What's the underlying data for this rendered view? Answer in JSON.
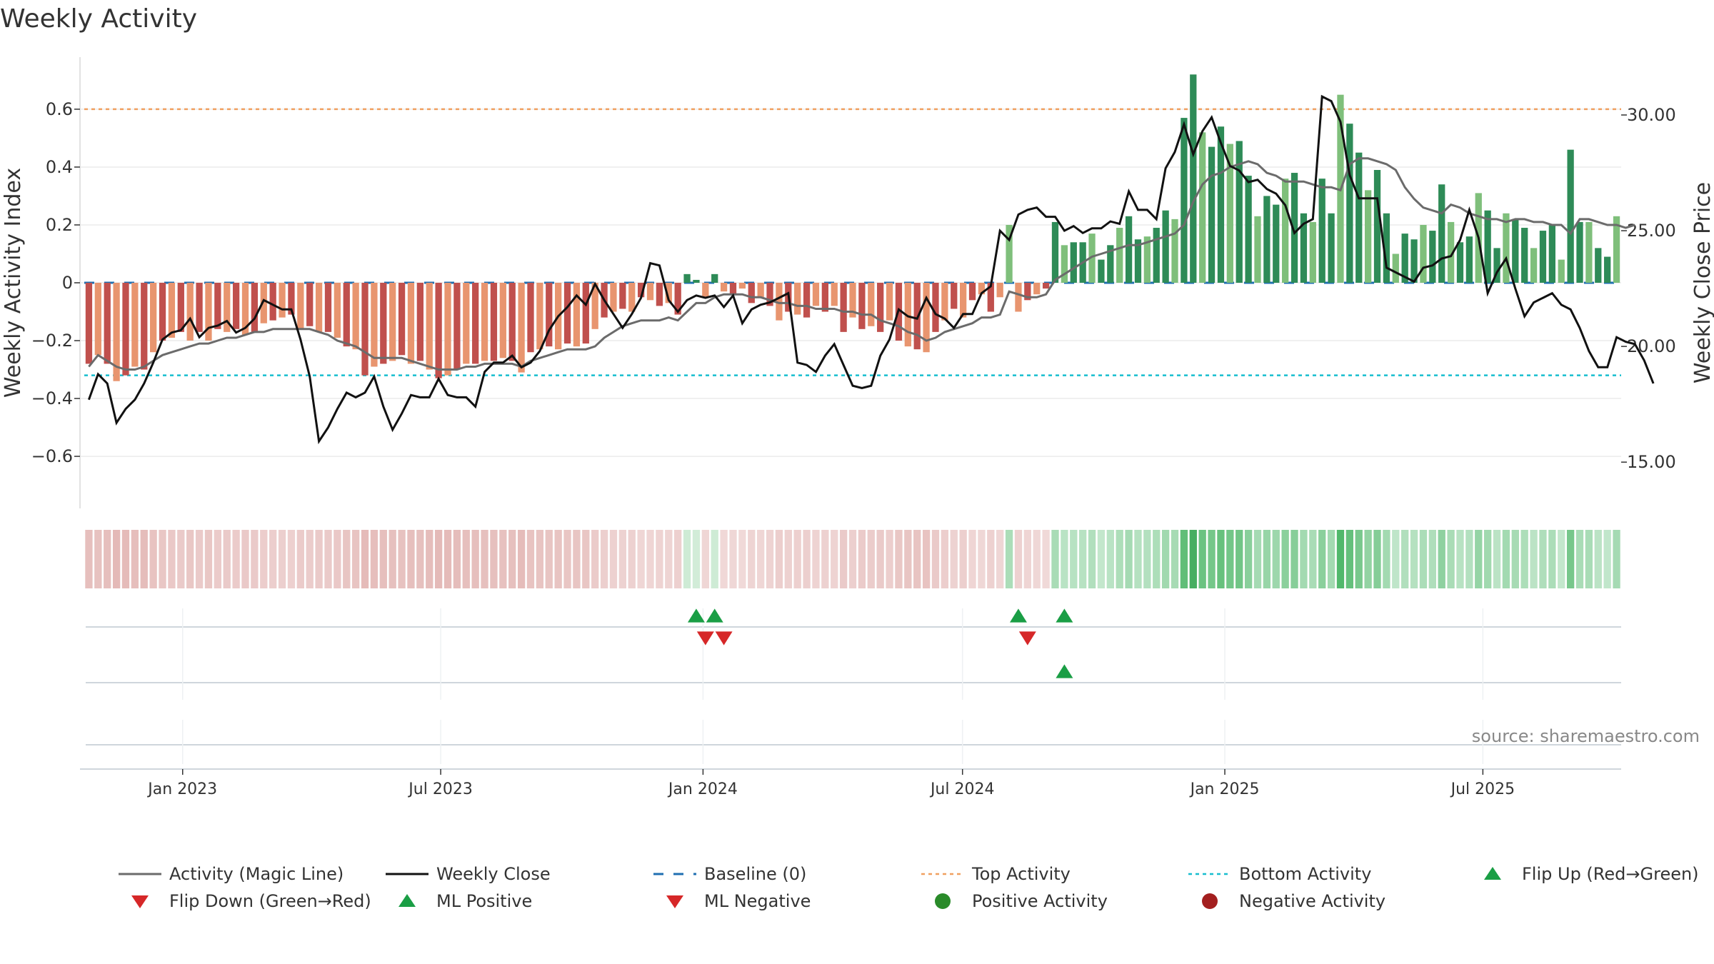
{
  "chart_data": {
    "type": "bar",
    "title": "Weekly Activity",
    "ylabel_left": "Weekly Activity Index",
    "ylabel_right": "Weekly Close Price",
    "left_axis": {
      "range": [
        -0.78,
        0.78
      ],
      "ticks": [
        -0.6,
        -0.4,
        -0.2,
        0,
        0.2,
        0.4,
        0.6
      ],
      "tick_labels": [
        "−0.6",
        "−0.4",
        "−0.2",
        "0",
        "0.2",
        "0.4",
        "0.6"
      ]
    },
    "right_axis": {
      "range": [
        13.0,
        32.5
      ],
      "ticks": [
        15,
        20,
        25,
        30
      ],
      "tick_labels": [
        "15.00",
        "20.00",
        "25.00",
        "30.00"
      ]
    },
    "x_axis": {
      "start_date": "2022-10-24",
      "end_date": "2025-10-06",
      "tick_dates": [
        "2023-01-01",
        "2023-07-01",
        "2024-01-01",
        "2024-07-01",
        "2025-01-01",
        "2025-07-01"
      ],
      "tick_labels": [
        "Jan 2023",
        "Jul 2023",
        "Jan 2024",
        "Jul 2024",
        "Jan 2025",
        "Jul 2025"
      ]
    },
    "reference_lines": {
      "top_activity": 0.6,
      "bottom_activity": -0.32,
      "baseline": 0
    },
    "activity_bars": [
      -0.28,
      -0.25,
      -0.28,
      -0.34,
      -0.32,
      -0.29,
      -0.3,
      -0.24,
      -0.2,
      -0.19,
      -0.17,
      -0.2,
      -0.17,
      -0.2,
      -0.16,
      -0.17,
      -0.16,
      -0.18,
      -0.17,
      -0.14,
      -0.13,
      -0.12,
      -0.11,
      -0.16,
      -0.15,
      -0.17,
      -0.17,
      -0.19,
      -0.22,
      -0.23,
      -0.32,
      -0.29,
      -0.28,
      -0.27,
      -0.25,
      -0.28,
      -0.27,
      -0.3,
      -0.33,
      -0.32,
      -0.3,
      -0.28,
      -0.28,
      -0.27,
      -0.27,
      -0.26,
      -0.27,
      -0.31,
      -0.24,
      -0.23,
      -0.22,
      -0.23,
      -0.21,
      -0.22,
      -0.21,
      -0.16,
      -0.12,
      -0.1,
      -0.09,
      -0.1,
      -0.05,
      -0.06,
      -0.08,
      -0.07,
      -0.11,
      0.03,
      0.01,
      -0.05,
      0.03,
      -0.03,
      -0.04,
      -0.02,
      -0.07,
      -0.05,
      -0.08,
      -0.13,
      -0.1,
      -0.11,
      -0.12,
      -0.08,
      -0.1,
      -0.08,
      -0.17,
      -0.12,
      -0.16,
      -0.15,
      -0.17,
      -0.13,
      -0.2,
      -0.22,
      -0.23,
      -0.24,
      -0.17,
      -0.13,
      -0.09,
      -0.12,
      -0.06,
      -0.04,
      -0.1,
      -0.05,
      0.2,
      -0.1,
      -0.06,
      -0.04,
      -0.02,
      0.21,
      0.13,
      0.14,
      0.14,
      0.17,
      0.08,
      0.13,
      0.19,
      0.23,
      0.15,
      0.16,
      0.19,
      0.25,
      0.22,
      0.57,
      0.72,
      0.52,
      0.47,
      0.54,
      0.48,
      0.49,
      0.37,
      0.23,
      0.3,
      0.27,
      0.36,
      0.38,
      0.24,
      0.21,
      0.36,
      0.24,
      0.65,
      0.55,
      0.45,
      0.32,
      0.39,
      0.24,
      0.1,
      0.17,
      0.15,
      0.2,
      0.18,
      0.34,
      0.21,
      0.14,
      0.16,
      0.31,
      0.25,
      0.12,
      0.24,
      0.22,
      0.19,
      0.12,
      0.18,
      0.2,
      0.08,
      0.46,
      0.21,
      0.21,
      0.12,
      0.09,
      0.23
    ],
    "magic_line": [
      -0.29,
      -0.25,
      -0.27,
      -0.29,
      -0.3,
      -0.3,
      -0.29,
      -0.27,
      -0.25,
      -0.24,
      -0.23,
      -0.22,
      -0.21,
      -0.21,
      -0.2,
      -0.19,
      -0.19,
      -0.18,
      -0.17,
      -0.17,
      -0.16,
      -0.16,
      -0.16,
      -0.16,
      -0.16,
      -0.17,
      -0.18,
      -0.2,
      -0.21,
      -0.22,
      -0.24,
      -0.26,
      -0.26,
      -0.26,
      -0.26,
      -0.27,
      -0.28,
      -0.29,
      -0.3,
      -0.3,
      -0.3,
      -0.29,
      -0.29,
      -0.28,
      -0.28,
      -0.28,
      -0.28,
      -0.29,
      -0.27,
      -0.26,
      -0.25,
      -0.24,
      -0.23,
      -0.23,
      -0.23,
      -0.22,
      -0.19,
      -0.17,
      -0.15,
      -0.14,
      -0.13,
      -0.13,
      -0.13,
      -0.12,
      -0.13,
      -0.1,
      -0.07,
      -0.07,
      -0.05,
      -0.04,
      -0.04,
      -0.04,
      -0.05,
      -0.05,
      -0.06,
      -0.07,
      -0.07,
      -0.08,
      -0.08,
      -0.09,
      -0.09,
      -0.09,
      -0.1,
      -0.1,
      -0.11,
      -0.11,
      -0.13,
      -0.14,
      -0.15,
      -0.17,
      -0.18,
      -0.2,
      -0.19,
      -0.17,
      -0.16,
      -0.15,
      -0.14,
      -0.12,
      -0.12,
      -0.11,
      -0.03,
      -0.04,
      -0.05,
      -0.05,
      -0.04,
      0.01,
      0.03,
      0.05,
      0.07,
      0.09,
      0.1,
      0.11,
      0.12,
      0.13,
      0.13,
      0.14,
      0.15,
      0.16,
      0.17,
      0.2,
      0.28,
      0.34,
      0.37,
      0.38,
      0.4,
      0.41,
      0.42,
      0.41,
      0.38,
      0.37,
      0.35,
      0.35,
      0.35,
      0.34,
      0.33,
      0.33,
      0.32,
      0.41,
      0.43,
      0.43,
      0.42,
      0.41,
      0.39,
      0.33,
      0.29,
      0.26,
      0.25,
      0.24,
      0.27,
      0.26,
      0.24,
      0.23,
      0.22,
      0.22,
      0.21,
      0.22,
      0.22,
      0.21,
      0.21,
      0.2,
      0.2,
      0.17,
      0.22,
      0.22,
      0.21,
      0.2,
      0.2,
      0.19,
      0.2
    ],
    "weekly_close": [
      17.7,
      18.8,
      18.4,
      16.7,
      17.3,
      17.7,
      18.4,
      19.3,
      20.3,
      20.6,
      20.7,
      21.2,
      20.4,
      20.8,
      20.9,
      21.1,
      20.6,
      20.8,
      21.2,
      22.0,
      21.8,
      21.6,
      21.6,
      20.3,
      18.7,
      15.9,
      16.5,
      17.3,
      18.0,
      17.8,
      18.0,
      18.7,
      17.4,
      16.4,
      17.1,
      17.9,
      17.8,
      17.8,
      18.6,
      17.9,
      17.8,
      17.8,
      17.4,
      18.9,
      19.3,
      19.3,
      19.6,
      19.1,
      19.3,
      19.8,
      20.7,
      21.3,
      21.7,
      22.2,
      21.8,
      22.7,
      22.0,
      21.4,
      20.8,
      21.4,
      22.1,
      23.6,
      23.5,
      22.0,
      21.5,
      22.0,
      22.2,
      22.1,
      22.2,
      21.7,
      22.2,
      21.0,
      21.6,
      21.8,
      21.9,
      22.1,
      22.3,
      19.3,
      19.2,
      18.9,
      19.6,
      20.1,
      19.2,
      18.3,
      18.2,
      18.3,
      19.6,
      20.3,
      21.6,
      21.3,
      21.2,
      22.1,
      21.4,
      21.2,
      20.8,
      21.4,
      21.4,
      22.3,
      22.6,
      25.0,
      24.6,
      25.7,
      25.9,
      26.0,
      25.6,
      25.6,
      25.0,
      25.2,
      24.9,
      25.1,
      25.1,
      25.4,
      25.3,
      26.7,
      25.9,
      25.9,
      25.5,
      27.7,
      28.4,
      29.6,
      28.3,
      29.3,
      29.9,
      28.8,
      27.8,
      27.6,
      27.1,
      27.2,
      26.8,
      26.6,
      26.1,
      24.9,
      25.3,
      25.5,
      30.8,
      30.6,
      29.7,
      27.4,
      26.4,
      26.4,
      26.4,
      23.4,
      23.2,
      23.0,
      22.8,
      23.4,
      23.5,
      23.8,
      23.9,
      24.6,
      25.9,
      24.7,
      22.3,
      23.2,
      23.8,
      22.5,
      21.3,
      21.9,
      22.1,
      22.3,
      21.8,
      21.6,
      20.8,
      19.8,
      19.1,
      19.1,
      20.4,
      20.2,
      20.1,
      19.4,
      18.4
    ],
    "flip_markers": {
      "flip_up_weeks": [
        66,
        68,
        101,
        106
      ],
      "flip_down_weeks": [
        67,
        69,
        102
      ],
      "ml_positive_weeks": [
        106
      ],
      "ml_negative_weeks": []
    },
    "legend": [
      "Activity (Magic Line)",
      "Weekly Close",
      "Baseline (0)",
      "Top Activity",
      "Bottom Activity",
      "Flip Up (Red→Green)",
      "Flip Down (Green→Red)",
      "ML Positive",
      "ML Negative",
      "Positive Activity",
      "Negative Activity"
    ]
  },
  "source_label": "source: sharemaestro.com",
  "colors": {
    "pos_dark": "#2e8b57",
    "pos_light": "#7fbf7b",
    "neg_dark": "#c0504d",
    "neg_light": "#e8956f",
    "magic_line": "#6b6b6b",
    "close_line": "#111111",
    "baseline": "#1f6fb2",
    "top": "#f0a060",
    "bottom": "#17becf",
    "flip_up": "#1a9e45",
    "flip_down": "#d62728",
    "positive_dot": "#2a8b2a",
    "negative_dot": "#a31f1f"
  }
}
